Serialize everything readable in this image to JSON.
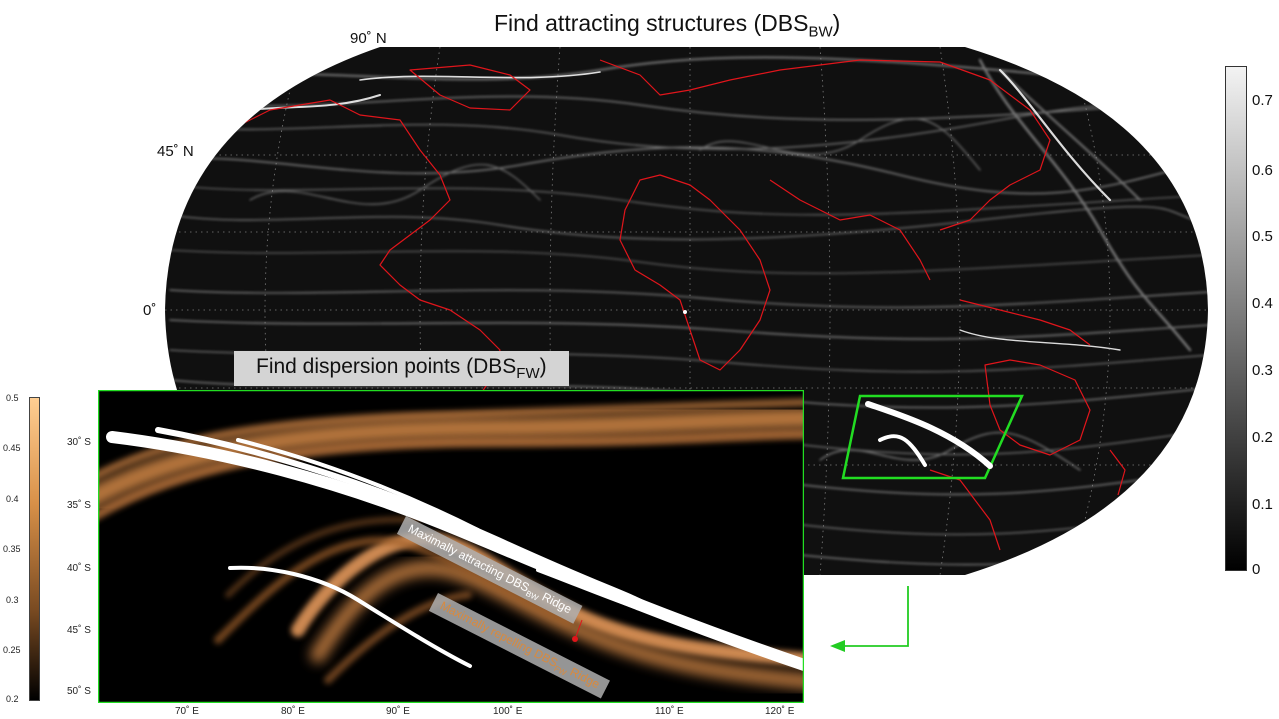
{
  "top_title": {
    "prefix": "Find attracting structures (DBS",
    "sub": "BW",
    "suffix": ")"
  },
  "lat_labels": {
    "north90": "90˚ N",
    "north45": "45˚ N",
    "equator": "0˚"
  },
  "main_colorbar": {
    "ticks": [
      "0.7",
      "0.6",
      "0.5",
      "0.4",
      "0.3",
      "0.2",
      "0.1",
      "0"
    ],
    "range": [
      0,
      0.75
    ]
  },
  "inset": {
    "title": {
      "prefix": "Find dispersion points (DBS",
      "sub": "FW",
      "suffix": ")"
    },
    "y_ticks": [
      "30˚ S",
      "35˚ S",
      "40˚ S",
      "45˚ S",
      "50˚ S"
    ],
    "x_ticks": [
      "70˚ E",
      "80˚ E",
      "90˚ E",
      "100˚ E",
      "110˚ E",
      "120˚ E"
    ],
    "attracting_label": {
      "prefix": "Maximally attracting DBS",
      "sub": "BW",
      "suffix": " Ridge"
    },
    "repelling_label": {
      "prefix": "Maximally repelling DBS",
      "sub": "FW",
      "suffix": " Ridge"
    }
  },
  "inset_colorbar": {
    "ticks": [
      "0.5",
      "0.45",
      "0.4",
      "0.35",
      "0.3",
      "0.25",
      "0.2"
    ],
    "range": [
      0.2,
      0.5
    ]
  },
  "colors": {
    "coastline": "#e0151b",
    "highlight_box": "#22dd22",
    "arrow": "#22cc22",
    "ridge_marker": "#e0151b"
  }
}
